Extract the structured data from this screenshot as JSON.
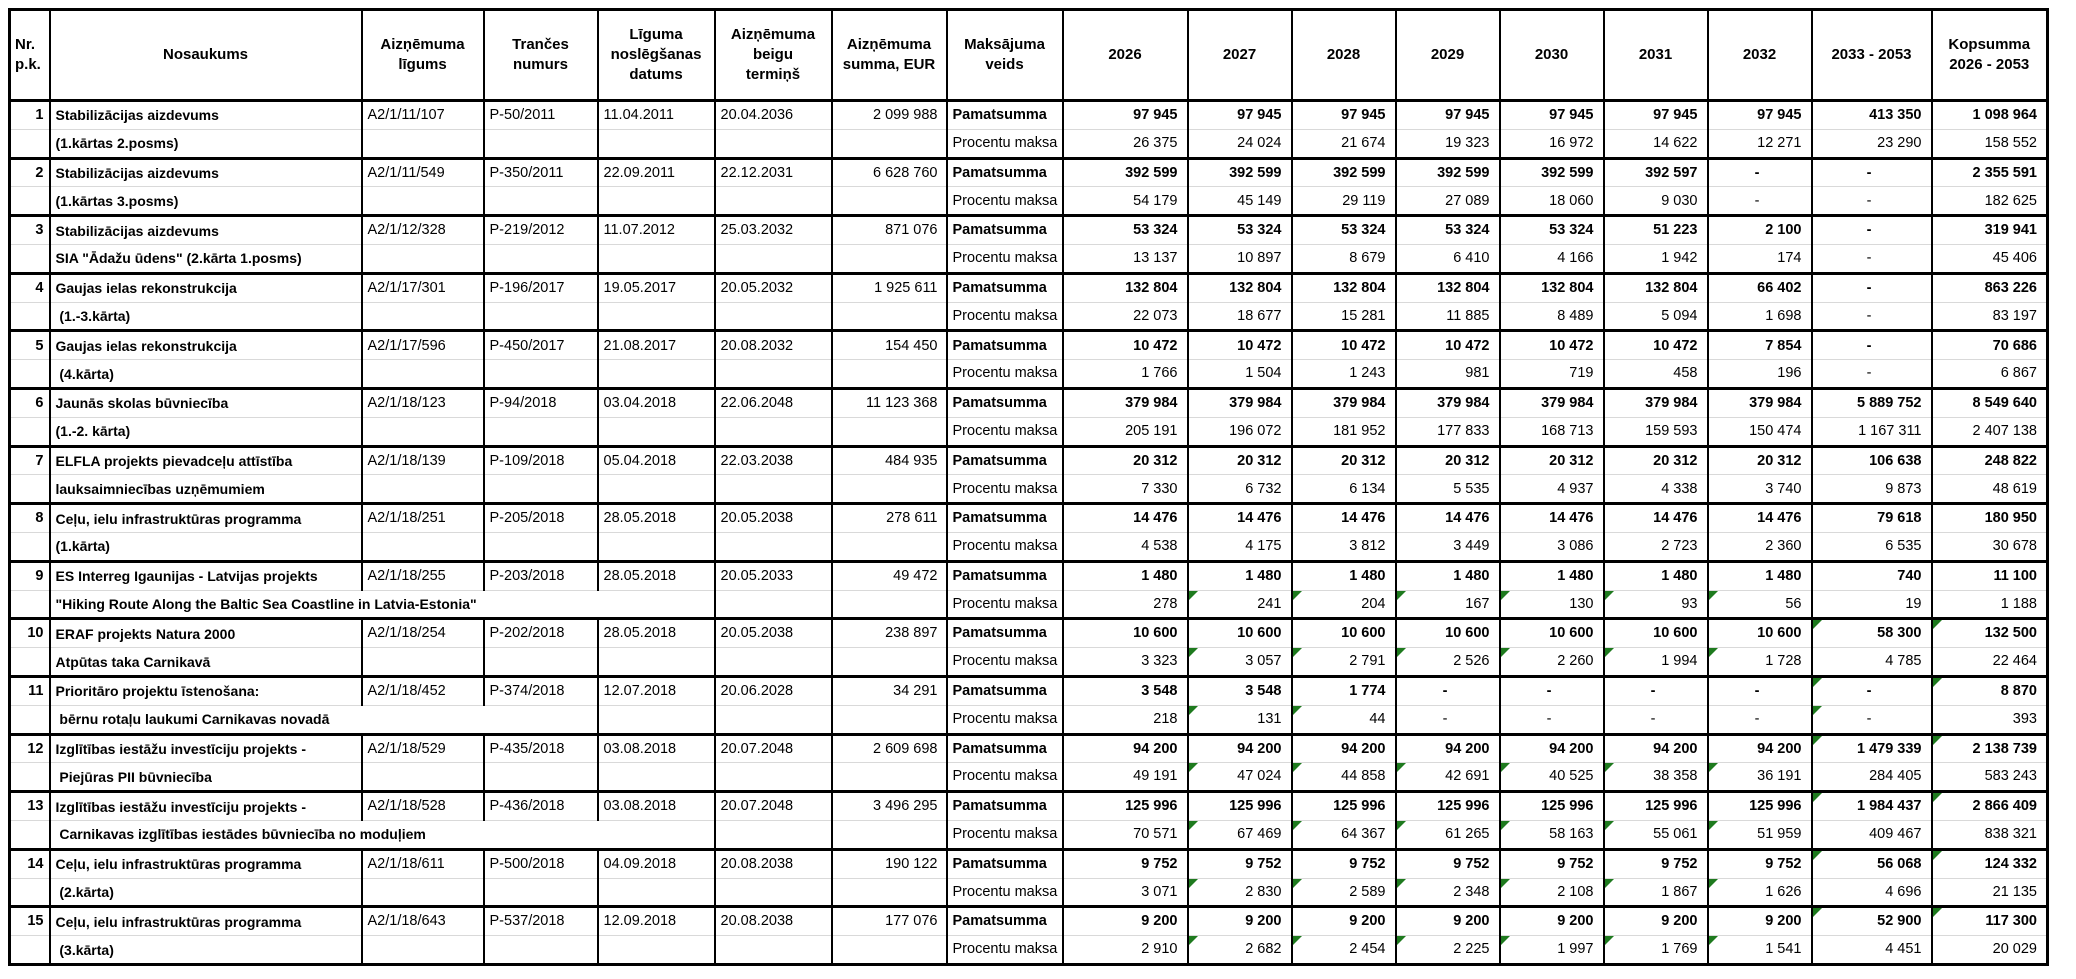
{
  "colors": {
    "error_flag": "#1e7a1e",
    "grid": "#000000",
    "row_divider": "#d9d9d9"
  },
  "table": {
    "columns": [
      {
        "id": "nr",
        "label": "Nr.\np.k."
      },
      {
        "id": "nosaukums",
        "label": "Nosaukums"
      },
      {
        "id": "ligums",
        "label": "Aizņēmuma\nlīgums"
      },
      {
        "id": "trance",
        "label": "Trančes\nnumurs"
      },
      {
        "id": "datums",
        "label": "Līguma\nnoslēgšanas\ndatums"
      },
      {
        "id": "termins",
        "label": "Aizņēmuma\nbeigu\ntermiņš"
      },
      {
        "id": "summa",
        "label": "Aizņēmuma\nsumma, EUR"
      },
      {
        "id": "veids",
        "label": "Maksājuma\nveids"
      },
      {
        "id": "y2026",
        "label": "2026"
      },
      {
        "id": "y2027",
        "label": "2027"
      },
      {
        "id": "y2028",
        "label": "2028"
      },
      {
        "id": "y2029",
        "label": "2029"
      },
      {
        "id": "y2030",
        "label": "2030"
      },
      {
        "id": "y2031",
        "label": "2031"
      },
      {
        "id": "y2032",
        "label": "2032"
      },
      {
        "id": "y2033_2053",
        "label": "2033 - 2053"
      },
      {
        "id": "kopsumma",
        "label": "Kopsumma\n2026 - 2053"
      }
    ],
    "row_labels": {
      "principal": "Pamatsumma",
      "interest": "Procentu maksa"
    },
    "loans": [
      {
        "nr": "1",
        "name1": "Stabilizācijas aizdevums",
        "name2": "(1.kārtas 2.posms)",
        "contract": "A2/1/11/107",
        "tranche": "P-50/2011",
        "signed": "11.04.2011",
        "maturity": "20.04.2036",
        "amount": "2 099 988",
        "principal": [
          "97 945",
          "97 945",
          "97 945",
          "97 945",
          "97 945",
          "97 945",
          "97 945",
          "413 350",
          "1 098 964"
        ],
        "interest": [
          "26 375",
          "24 024",
          "21 674",
          "19 323",
          "16 972",
          "14 622",
          "12 271",
          "23 290",
          "158 552"
        ]
      },
      {
        "nr": "2",
        "name1": "Stabilizācijas aizdevums",
        "name2": "(1.kārtas 3.posms)",
        "contract": "A2/1/11/549",
        "tranche": "P-350/2011",
        "signed": "22.09.2011",
        "maturity": "22.12.2031",
        "amount": "6 628 760",
        "principal": [
          "392 599",
          "392 599",
          "392 599",
          "392 599",
          "392 599",
          "392 597",
          "-",
          "-",
          "2 355 591"
        ],
        "interest": [
          "54 179",
          "45 149",
          "29 119",
          "27 089",
          "18 060",
          "9 030",
          "-",
          "-",
          "182 625"
        ]
      },
      {
        "nr": "3",
        "name1": "Stabilizācijas aizdevums",
        "name2": "SIA \"Ādažu ūdens\" (2.kārta 1.posms)",
        "contract": "A2/1/12/328",
        "tranche": "P-219/2012",
        "signed": "11.07.2012",
        "maturity": "25.03.2032",
        "amount": "871 076",
        "principal": [
          "53 324",
          "53 324",
          "53 324",
          "53 324",
          "53 324",
          "51 223",
          "2 100",
          "-",
          "319 941"
        ],
        "interest": [
          "13 137",
          "10 897",
          "8 679",
          "6 410",
          "4 166",
          "1 942",
          "174",
          "-",
          "45 406"
        ]
      },
      {
        "nr": "4",
        "name1": "Gaujas ielas rekonstrukcija",
        "name2": " (1.-3.kārta)",
        "contract": "A2/1/17/301",
        "tranche": "P-196/2017",
        "signed": "19.05.2017",
        "maturity": "20.05.2032",
        "amount": "1 925 611",
        "principal": [
          "132 804",
          "132 804",
          "132 804",
          "132 804",
          "132 804",
          "132 804",
          "66 402",
          "-",
          "863 226"
        ],
        "interest": [
          "22 073",
          "18 677",
          "15 281",
          "11 885",
          "8 489",
          "5 094",
          "1 698",
          "-",
          "83 197"
        ]
      },
      {
        "nr": "5",
        "name1": "Gaujas ielas rekonstrukcija",
        "name2": " (4.kārta)",
        "contract": "A2/1/17/596",
        "tranche": "P-450/2017",
        "signed": "21.08.2017",
        "maturity": "20.08.2032",
        "amount": "154 450",
        "principal": [
          "10 472",
          "10 472",
          "10 472",
          "10 472",
          "10 472",
          "10 472",
          "7 854",
          "-",
          "70 686"
        ],
        "interest": [
          "1 766",
          "1 504",
          "1 243",
          "981",
          "719",
          "458",
          "196",
          "-",
          "6 867"
        ]
      },
      {
        "nr": "6",
        "name1": "Jaunās skolas būvniecība",
        "name2": "(1.-2. kārta)",
        "contract": "A2/1/18/123",
        "tranche": "P-94/2018",
        "signed": "03.04.2018",
        "maturity": "22.06.2048",
        "amount": "11 123 368",
        "principal": [
          "379 984",
          "379 984",
          "379 984",
          "379 984",
          "379 984",
          "379 984",
          "379 984",
          "5 889 752",
          "8 549 640"
        ],
        "interest": [
          "205 191",
          "196 072",
          "181 952",
          "177 833",
          "168 713",
          "159 593",
          "150 474",
          "1 167 311",
          "2 407 138"
        ]
      },
      {
        "nr": "7",
        "name1": "ELFLA projekts pievadceļu attīstība",
        "name2": "lauksaimniecības uzņēmumiem",
        "contract": "A2/1/18/139",
        "tranche": "P-109/2018",
        "signed": "05.04.2018",
        "maturity": "22.03.2038",
        "amount": "484 935",
        "principal": [
          "20 312",
          "20 312",
          "20 312",
          "20 312",
          "20 312",
          "20 312",
          "20 312",
          "106 638",
          "248 822"
        ],
        "interest": [
          "7 330",
          "6 732",
          "6 134",
          "5 535",
          "4 937",
          "4 338",
          "3 740",
          "9 873",
          "48 619"
        ]
      },
      {
        "nr": "8",
        "name1": "Ceļu, ielu infrastruktūras programma",
        "name2": "(1.kārta)",
        "contract": "A2/1/18/251",
        "tranche": "P-205/2018",
        "signed": "28.05.2018",
        "maturity": "20.05.2038",
        "amount": "278 611",
        "principal": [
          "14 476",
          "14 476",
          "14 476",
          "14 476",
          "14 476",
          "14 476",
          "14 476",
          "79 618",
          "180 950"
        ],
        "interest": [
          "4 538",
          "4 175",
          "3 812",
          "3 449",
          "3 086",
          "2 723",
          "2 360",
          "6 535",
          "30 678"
        ]
      },
      {
        "nr": "9",
        "name1": "ES Interreg Igaunijas - Latvijas projekts",
        "name2": "\"Hiking Route Along the Baltic Sea Coastline in Latvia-Estonia\"",
        "contract": "A2/1/18/255",
        "tranche": "P-203/2018",
        "signed": "28.05.2018",
        "maturity": "20.05.2033",
        "amount": "49 472",
        "principal": [
          "1 480",
          "1 480",
          "1 480",
          "1 480",
          "1 480",
          "1 480",
          "1 480",
          "740",
          "11 100"
        ],
        "interest": [
          "278",
          "241",
          "204",
          "167",
          "130",
          "93",
          "56",
          "19",
          "1 188"
        ],
        "interest_flags": [
          1,
          2,
          3,
          4,
          5,
          6
        ]
      },
      {
        "nr": "10",
        "name1": "ERAF projekts Natura 2000",
        "name2": "Atpūtas taka Carnikavā",
        "contract": "A2/1/18/254",
        "tranche": "P-202/2018",
        "signed": "28.05.2018",
        "maturity": "20.05.2038",
        "amount": "238 897",
        "principal": [
          "10 600",
          "10 600",
          "10 600",
          "10 600",
          "10 600",
          "10 600",
          "10 600",
          "58 300",
          "132 500"
        ],
        "interest": [
          "3 323",
          "3 057",
          "2 791",
          "2 526",
          "2 260",
          "1 994",
          "1 728",
          "4 785",
          "22 464"
        ],
        "principal_flags": [
          7,
          8
        ],
        "interest_flags": [
          1,
          2,
          3,
          4,
          5,
          6
        ]
      },
      {
        "nr": "11",
        "name1": "Prioritāro projektu īstenošana:",
        "name2": " bērnu rotaļu laukumi Carnikavas novadā",
        "contract": "A2/1/18/452",
        "tranche": "P-374/2018",
        "signed": "12.07.2018",
        "maturity": "20.06.2028",
        "amount": "34 291",
        "principal": [
          "3 548",
          "3 548",
          "1 774",
          "-",
          "-",
          "-",
          "-",
          "-",
          "8 870"
        ],
        "interest": [
          "218",
          "131",
          "44",
          "-",
          "-",
          "-",
          "-",
          "-",
          "393"
        ],
        "principal_flags": [
          7,
          8
        ],
        "interest_flags": [
          1,
          2,
          7
        ]
      },
      {
        "nr": "12",
        "name1": "Izglītības iestāžu investīciju projekts -",
        "name2": " Piejūras PII būvniecība",
        "contract": "A2/1/18/529",
        "tranche": "P-435/2018",
        "signed": "03.08.2018",
        "maturity": "20.07.2048",
        "amount": "2 609 698",
        "principal": [
          "94 200",
          "94 200",
          "94 200",
          "94 200",
          "94 200",
          "94 200",
          "94 200",
          "1 479 339",
          "2 138 739"
        ],
        "interest": [
          "49 191",
          "47 024",
          "44 858",
          "42 691",
          "40 525",
          "38 358",
          "36 191",
          "284 405",
          "583 243"
        ],
        "principal_flags": [
          7,
          8
        ],
        "interest_flags": [
          1,
          2,
          3,
          4,
          5,
          6
        ]
      },
      {
        "nr": "13",
        "name1": "Izglītības iestāžu investīciju projekts -",
        "name2": " Carnikavas izglītības iestādes būvniecība no moduļiem",
        "contract": "A2/1/18/528",
        "tranche": "P-436/2018",
        "signed": "03.08.2018",
        "maturity": "20.07.2048",
        "amount": "3 496 295",
        "principal": [
          "125 996",
          "125 996",
          "125 996",
          "125 996",
          "125 996",
          "125 996",
          "125 996",
          "1 984 437",
          "2 866 409"
        ],
        "interest": [
          "70 571",
          "67 469",
          "64 367",
          "61 265",
          "58 163",
          "55 061",
          "51 959",
          "409 467",
          "838 321"
        ],
        "principal_flags": [
          7,
          8
        ],
        "interest_flags": [
          1,
          2,
          3,
          4,
          5,
          6
        ]
      },
      {
        "nr": "14",
        "name1": "Ceļu, ielu infrastruktūras programma",
        "name2": " (2.kārta)",
        "contract": "A2/1/18/611",
        "tranche": "P-500/2018",
        "signed": "04.09.2018",
        "maturity": "20.08.2038",
        "amount": "190 122",
        "principal": [
          "9 752",
          "9 752",
          "9 752",
          "9 752",
          "9 752",
          "9 752",
          "9 752",
          "56 068",
          "124 332"
        ],
        "interest": [
          "3 071",
          "2 830",
          "2 589",
          "2 348",
          "2 108",
          "1 867",
          "1 626",
          "4 696",
          "21 135"
        ],
        "principal_flags": [
          7,
          8
        ],
        "interest_flags": [
          1,
          2,
          3,
          4,
          5,
          6
        ]
      },
      {
        "nr": "15",
        "name1": "Ceļu, ielu infrastruktūras programma",
        "name2": " (3.kārta)",
        "contract": "A2/1/18/643",
        "tranche": "P-537/2018",
        "signed": "12.09.2018",
        "maturity": "20.08.2038",
        "amount": "177 076",
        "principal": [
          "9 200",
          "9 200",
          "9 200",
          "9 200",
          "9 200",
          "9 200",
          "9 200",
          "52 900",
          "117 300"
        ],
        "interest": [
          "2 910",
          "2 682",
          "2 454",
          "2 225",
          "1 997",
          "1 769",
          "1 541",
          "4 451",
          "20 029"
        ],
        "principal_flags": [
          7,
          8
        ],
        "interest_flags": [
          1,
          2,
          3,
          4,
          5,
          6
        ]
      }
    ]
  }
}
